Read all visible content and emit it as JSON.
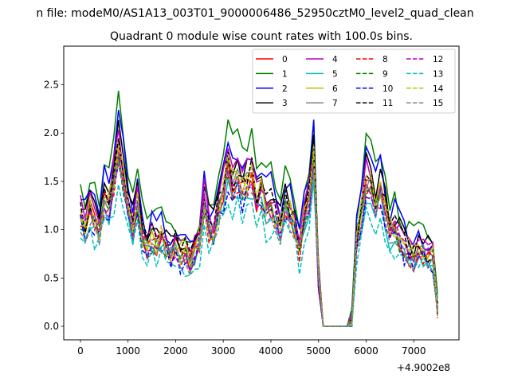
{
  "chart_data": {
    "type": "line",
    "suptitle": "n file: modeM0/AS1A13_003T01_9000006486_52950cztM0_level2_quad_clean",
    "title": "Quadrant 0 module wise count rates with 100.0s bins.",
    "xlabel": "",
    "ylabel": "",
    "x_offset_label": "+4.9002e8",
    "xlim": [
      -350,
      7950
    ],
    "ylim": [
      -0.14,
      2.9
    ],
    "xticks": [
      0,
      1000,
      2000,
      3000,
      4000,
      5000,
      6000,
      7000
    ],
    "yticks": [
      0.0,
      0.5,
      1.0,
      1.5,
      2.0,
      2.5
    ],
    "ytick_labels": [
      "0.0",
      "0.5",
      "1.0",
      "1.5",
      "2.0",
      "2.5"
    ],
    "legend_position": "upper-right",
    "x": [
      0,
      100,
      200,
      300,
      400,
      500,
      600,
      700,
      800,
      900,
      1000,
      1100,
      1200,
      1300,
      1400,
      1500,
      1600,
      1700,
      1800,
      1900,
      2000,
      2100,
      2200,
      2300,
      2400,
      2500,
      2600,
      2700,
      2800,
      2900,
      3000,
      3100,
      3200,
      3300,
      3400,
      3500,
      3600,
      3700,
      3800,
      3900,
      4000,
      4100,
      4200,
      4300,
      4400,
      4500,
      4600,
      4700,
      4800,
      4900,
      5000,
      5100,
      5200,
      5300,
      5400,
      5500,
      5600,
      5700,
      5800,
      5900,
      6000,
      6100,
      6200,
      6300,
      6400,
      6500,
      6600,
      6700,
      6800,
      6900,
      7000,
      7100,
      7200,
      7300,
      7400,
      7500
    ],
    "base_profile": [
      1.2,
      1.05,
      1.25,
      1.15,
      1.05,
      1.35,
      1.3,
      1.55,
      1.95,
      1.6,
      1.2,
      1.05,
      1.3,
      0.95,
      0.85,
      0.95,
      0.9,
      0.95,
      0.85,
      0.8,
      0.85,
      0.75,
      0.8,
      0.7,
      0.8,
      0.9,
      1.35,
      1.05,
      1.0,
      1.25,
      1.45,
      1.7,
      1.5,
      1.6,
      1.45,
      1.55,
      1.6,
      1.35,
      1.45,
      1.25,
      1.3,
      1.15,
      1.05,
      1.3,
      1.2,
      1.1,
      0.85,
      1.2,
      1.35,
      1.8,
      0.5,
      0.0,
      0.0,
      0.0,
      0.0,
      0.0,
      0.0,
      0.08,
      0.9,
      1.2,
      1.55,
      1.5,
      1.3,
      1.45,
      1.25,
      1.0,
      1.05,
      0.95,
      0.85,
      0.8,
      0.75,
      0.85,
      0.8,
      0.75,
      0.75,
      0.2
    ],
    "series": [
      {
        "name": "0",
        "color": "#ff0000",
        "dash": "solid",
        "scale": 0.95,
        "seed": 1
      },
      {
        "name": "1",
        "color": "#008000",
        "dash": "solid",
        "scale": 1.25,
        "seed": 2
      },
      {
        "name": "2",
        "color": "#0000ff",
        "dash": "solid",
        "scale": 1.15,
        "seed": 3
      },
      {
        "name": "3",
        "color": "#000000",
        "dash": "solid",
        "scale": 1.1,
        "seed": 4
      },
      {
        "name": "4",
        "color": "#bf00bf",
        "dash": "solid",
        "scale": 1.05,
        "seed": 5
      },
      {
        "name": "5",
        "color": "#00bfbf",
        "dash": "solid",
        "scale": 0.9,
        "seed": 6
      },
      {
        "name": "6",
        "color": "#bfbf00",
        "dash": "solid",
        "scale": 1.0,
        "seed": 7
      },
      {
        "name": "7",
        "color": "#808080",
        "dash": "solid",
        "scale": 0.97,
        "seed": 8
      },
      {
        "name": "8",
        "color": "#ff0000",
        "dash": "dashed",
        "scale": 0.92,
        "seed": 9
      },
      {
        "name": "9",
        "color": "#008000",
        "dash": "dashed",
        "scale": 0.93,
        "seed": 10
      },
      {
        "name": "10",
        "color": "#0000ff",
        "dash": "dashed",
        "scale": 0.88,
        "seed": 11
      },
      {
        "name": "11",
        "color": "#000000",
        "dash": "dashed",
        "scale": 1.02,
        "seed": 12
      },
      {
        "name": "12",
        "color": "#bf00bf",
        "dash": "dashed",
        "scale": 0.95,
        "seed": 13
      },
      {
        "name": "13",
        "color": "#00bfbf",
        "dash": "dashed",
        "scale": 0.78,
        "seed": 14
      },
      {
        "name": "14",
        "color": "#bfbf00",
        "dash": "dashed",
        "scale": 0.98,
        "seed": 15
      },
      {
        "name": "15",
        "color": "#808080",
        "dash": "dashed",
        "scale": 0.9,
        "seed": 16
      }
    ]
  }
}
